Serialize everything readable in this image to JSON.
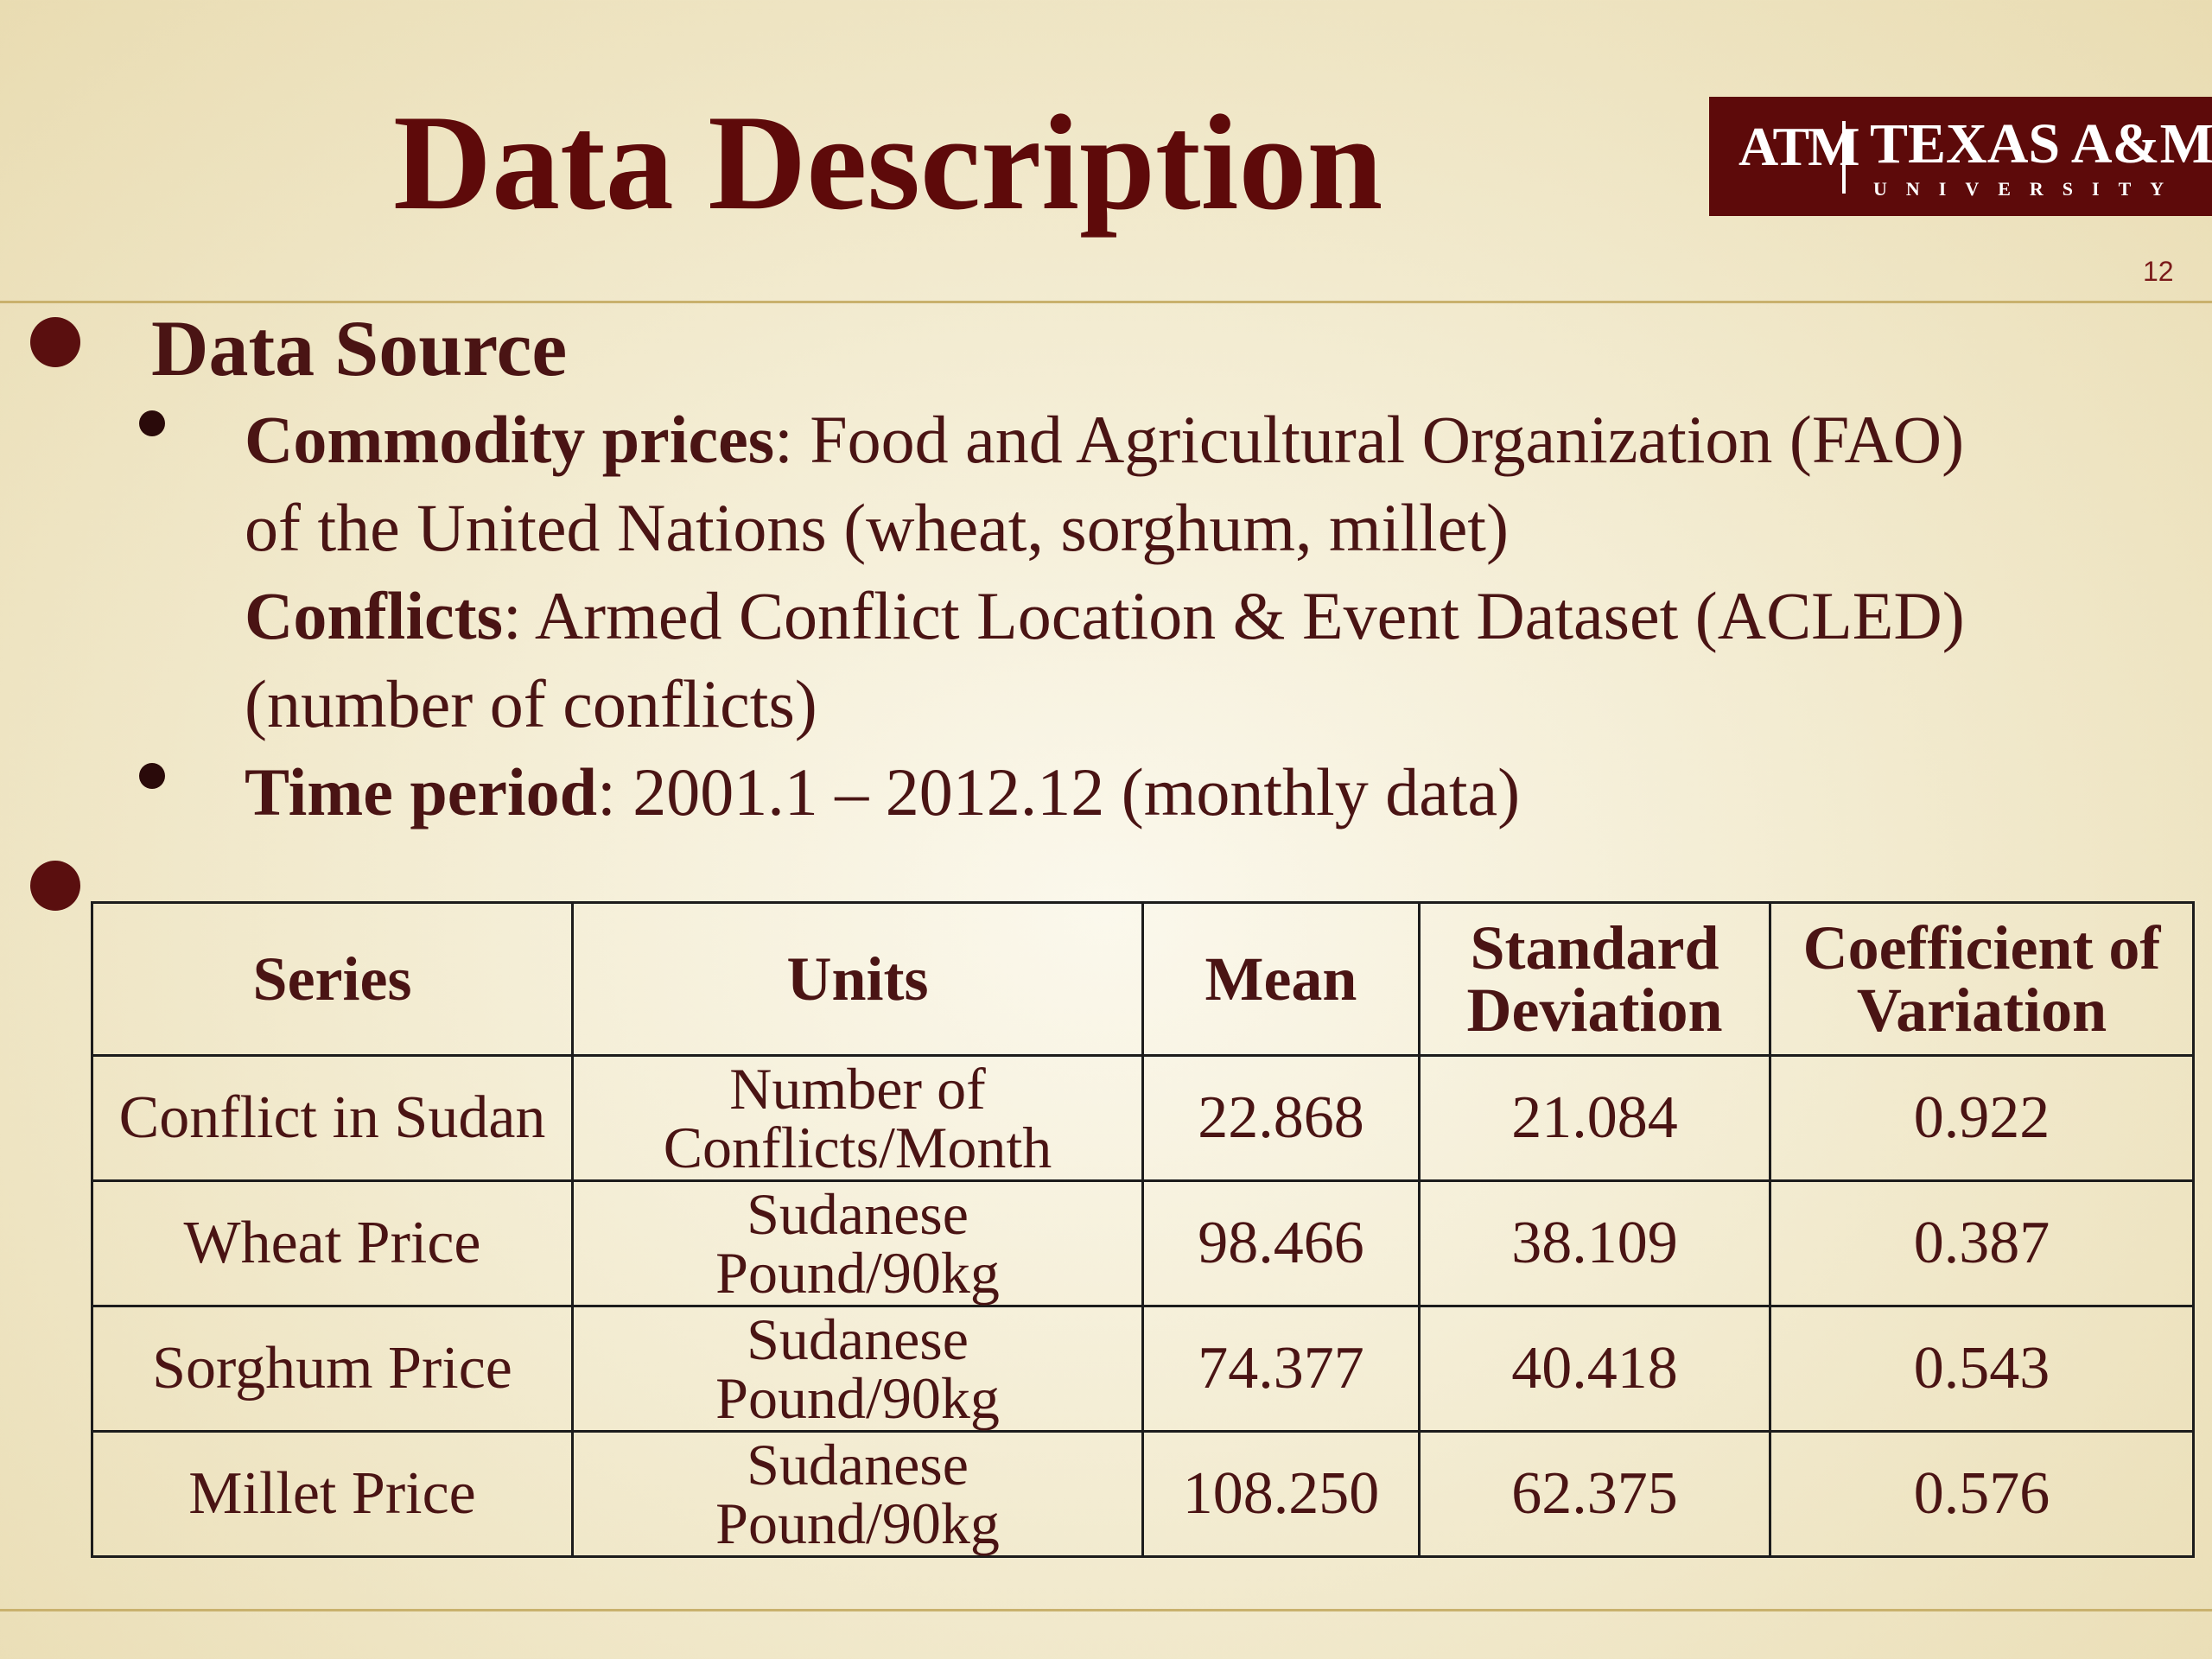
{
  "title": "Data Description",
  "logo": {
    "mark": "ATM",
    "name": "TEXAS A&M",
    "sub": "UNIVERSITY"
  },
  "slide_number": "12",
  "section": {
    "heading": "Data Source",
    "commodity_label": "Commodity prices",
    "commodity_text_1": ": Food and Agricultural Organization (FAO)",
    "commodity_text_2": "of the United Nations (wheat, sorghum, millet)",
    "conflicts_label": "Conflicts",
    "conflicts_text_1": ": Armed Conflict Location & Event Dataset (ACLED)",
    "conflicts_text_2": "(number of conflicts)",
    "time_label": "Time period",
    "time_text": ": 2001.1 – 2012.12 (monthly data)"
  },
  "table": {
    "headers": {
      "series": "Series",
      "units": "Units",
      "mean": "Mean",
      "sd_1": "Standard",
      "sd_2": "Deviation",
      "cv_1": "Coefficient of",
      "cv_2": "Variation"
    },
    "rows": [
      {
        "series": "Conflict in Sudan",
        "units_1": "Number of",
        "units_2": "Conflicts/Month",
        "mean": "22.868",
        "sd": "21.084",
        "cv": "0.922"
      },
      {
        "series": "Wheat Price",
        "units_1": "Sudanese",
        "units_2": "Pound/90kg",
        "mean": "98.466",
        "sd": "38.109",
        "cv": "0.387"
      },
      {
        "series": "Sorghum Price",
        "units_1": "Sudanese",
        "units_2": "Pound/90kg",
        "mean": "74.377",
        "sd": "40.418",
        "cv": "0.543"
      },
      {
        "series": "Millet Price",
        "units_1": "Sudanese",
        "units_2": "Pound/90kg",
        "mean": "108.250",
        "sd": "62.375",
        "cv": "0.576"
      }
    ]
  }
}
